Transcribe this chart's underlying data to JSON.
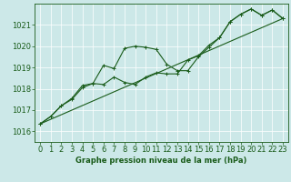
{
  "title": "Graphe pression niveau de la mer (hPa)",
  "bg_color": "#cce8e8",
  "line_color": "#1a5c1a",
  "grid_color": "#ffffff",
  "xlim": [
    -0.5,
    23.5
  ],
  "ylim": [
    1015.5,
    1022.0
  ],
  "yticks": [
    1016,
    1017,
    1018,
    1019,
    1020,
    1021
  ],
  "xticks": [
    0,
    1,
    2,
    3,
    4,
    5,
    6,
    7,
    8,
    9,
    10,
    11,
    12,
    13,
    14,
    15,
    16,
    17,
    18,
    19,
    20,
    21,
    22,
    23
  ],
  "line1_x": [
    0,
    1,
    2,
    3,
    4,
    5,
    6,
    7,
    8,
    9,
    10,
    11,
    12,
    13,
    14,
    15,
    16,
    17,
    18,
    19,
    20,
    21,
    22,
    23
  ],
  "line1_y": [
    1016.35,
    1016.7,
    1017.2,
    1017.5,
    1018.05,
    1018.25,
    1019.1,
    1018.95,
    1019.9,
    1020.0,
    1019.95,
    1019.85,
    1019.15,
    1018.85,
    1018.85,
    1019.5,
    1019.95,
    1020.4,
    1021.15,
    1021.5,
    1021.75,
    1021.45,
    1021.7,
    1021.3
  ],
  "line2_x": [
    0,
    1,
    2,
    3,
    4,
    5,
    6,
    7,
    8,
    9,
    10,
    11,
    12,
    13,
    14,
    15,
    16,
    17,
    18,
    19,
    20,
    21,
    22,
    23
  ],
  "line2_y": [
    1016.35,
    1016.7,
    1017.2,
    1017.55,
    1018.15,
    1018.25,
    1018.2,
    1018.55,
    1018.3,
    1018.2,
    1018.55,
    1018.75,
    1018.7,
    1018.7,
    1019.35,
    1019.55,
    1020.05,
    1020.4,
    1021.15,
    1021.5,
    1021.75,
    1021.45,
    1021.7,
    1021.3
  ],
  "line3_x": [
    0,
    23
  ],
  "line3_y": [
    1016.35,
    1021.3
  ],
  "tick_fontsize": 6,
  "label_fontsize": 6,
  "linewidth": 0.8,
  "marker_size": 3.0
}
